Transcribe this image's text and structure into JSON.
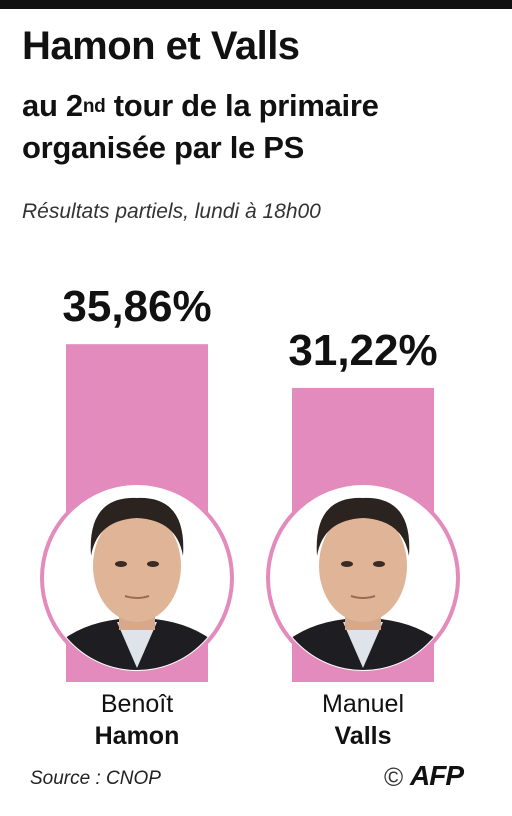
{
  "header": {
    "title": "Hamon et Valls",
    "subtitle_pre": "au 2",
    "subtitle_sup": "nd",
    "subtitle_post": " tour de la primaire",
    "subtitle_line2": "organisée par le PS",
    "note": "Résultats partiels, lundi à 18h00"
  },
  "chart_data": {
    "type": "bar",
    "categories": [
      "Benoît Hamon",
      "Manuel Valls"
    ],
    "values": [
      35.86,
      31.22
    ],
    "value_labels": [
      "35,86%",
      "31,22%"
    ],
    "unit": "%"
  },
  "candidates": [
    {
      "first_name": "Benoît",
      "last_name": "Hamon",
      "value_label": "35,86%"
    },
    {
      "first_name": "Manuel",
      "last_name": "Valls",
      "value_label": "31,22%"
    }
  ],
  "colors": {
    "bar": "#e38bbd",
    "ring": "#e38bbd"
  },
  "footer": {
    "source": "Source : CNOP",
    "copyright": "©",
    "logo": "AFP"
  }
}
